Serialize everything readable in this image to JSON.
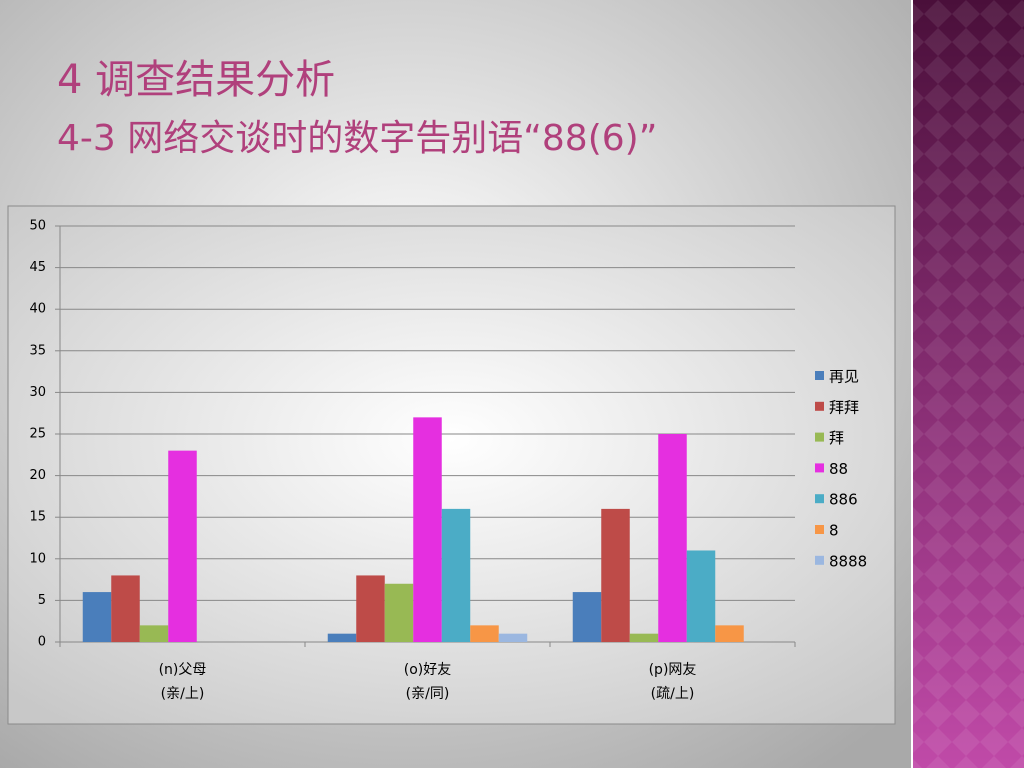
{
  "chart_data": {
    "type": "bar",
    "title": "4 调查结果分析",
    "subtitle": "4-3 网络交谈时的数字告别语“88(6)”",
    "categories": [
      [
        "(n)父母",
        "(亲/上)"
      ],
      [
        "(o)好友",
        "(亲/同)"
      ],
      [
        "(p)网友",
        "(疏/上)"
      ]
    ],
    "series": [
      {
        "name": "再见",
        "color": "#4a7ebb",
        "values": [
          6,
          1,
          6
        ]
      },
      {
        "name": "拜拜",
        "color": "#be4b48",
        "values": [
          8,
          8,
          16
        ]
      },
      {
        "name": "拜",
        "color": "#98b954",
        "values": [
          2,
          7,
          1
        ]
      },
      {
        "name": "88",
        "color": "#e52fe0",
        "values": [
          23,
          27,
          25
        ]
      },
      {
        "name": "886",
        "color": "#4bacc6",
        "values": [
          0,
          16,
          11
        ]
      },
      {
        "name": "8",
        "color": "#f79646",
        "values": [
          0,
          2,
          2
        ]
      },
      {
        "name": "8888",
        "color": "#9bb7e0",
        "values": [
          0,
          1,
          0
        ]
      }
    ],
    "ylim": [
      0,
      50
    ],
    "yticks": [
      0,
      5,
      10,
      15,
      20,
      25,
      30,
      35,
      40,
      45,
      50
    ],
    "grid": true,
    "legend": "right"
  }
}
